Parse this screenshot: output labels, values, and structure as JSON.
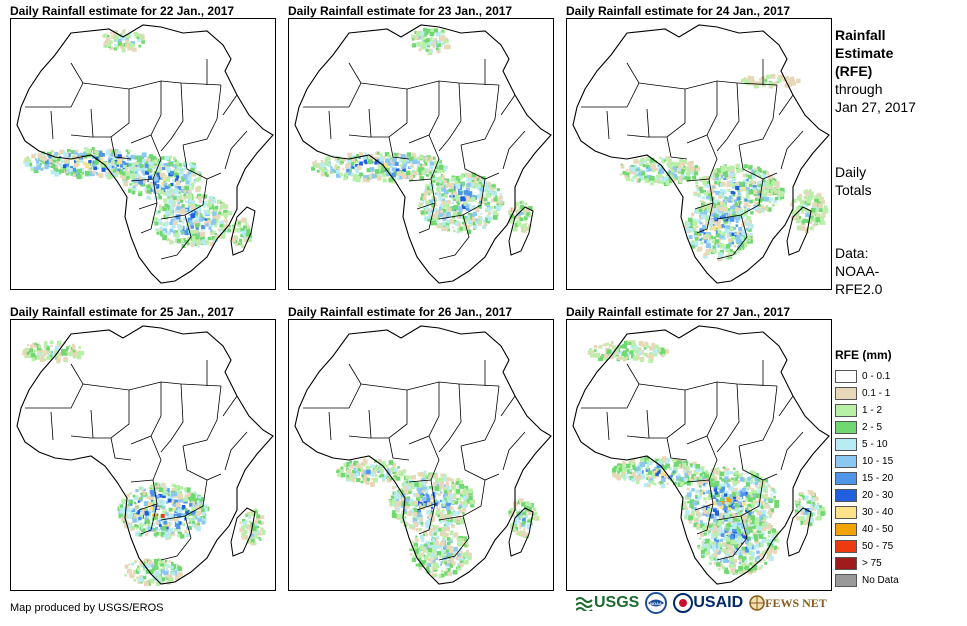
{
  "panels": [
    {
      "title": "Daily Rainfall estimate for 22 Jan., 2017",
      "seed": 22
    },
    {
      "title": "Daily Rainfall estimate for 23 Jan., 2017",
      "seed": 23
    },
    {
      "title": "Daily Rainfall estimate for 24 Jan., 2017",
      "seed": 24
    },
    {
      "title": "Daily Rainfall estimate for 25 Jan., 2017",
      "seed": 25
    },
    {
      "title": "Daily Rainfall estimate for 26 Jan., 2017",
      "seed": 26
    },
    {
      "title": "Daily Rainfall estimate for 27 Jan., 2017",
      "seed": 27
    }
  ],
  "side_info": {
    "title_line1": "Rainfall",
    "title_line2": "Estimate",
    "title_line3": "(RFE)",
    "through": "through",
    "date": "Jan 27, 2017",
    "daily1": "Daily",
    "daily2": "Totals",
    "data_label": "Data:",
    "data_src1": "NOAA-",
    "data_src2": "RFE2.0"
  },
  "legend": {
    "title": "RFE (mm)",
    "items": [
      {
        "label": "0 - 0.1",
        "color": "#ffffff"
      },
      {
        "label": "0.1 - 1",
        "color": "#e8d7b8"
      },
      {
        "label": "1 - 2",
        "color": "#b8f0a8"
      },
      {
        "label": "2 - 5",
        "color": "#70d870"
      },
      {
        "label": "5 - 10",
        "color": "#b8ecf4"
      },
      {
        "label": "10 - 15",
        "color": "#8cc6f2"
      },
      {
        "label": "15 - 20",
        "color": "#4f95ea"
      },
      {
        "label": "20 - 30",
        "color": "#1f5fe0"
      },
      {
        "label": "30 - 40",
        "color": "#fce38a"
      },
      {
        "label": "40 - 50",
        "color": "#f2a300"
      },
      {
        "label": "50 - 75",
        "color": "#ee3a12"
      },
      {
        "label": "> 75",
        "color": "#a01c1c"
      },
      {
        "label": "No Data",
        "color": "#999999"
      }
    ]
  },
  "footer": {
    "credit": "Map produced by USGS/EROS",
    "logos": [
      "USGS",
      "NOAA",
      "USAID",
      "FEWS NET"
    ]
  },
  "colors": {
    "usgs_green": "#1c6b2e",
    "noaa_blue": "#1b4f9c",
    "usaid_blue": "#002a6c",
    "usaid_red": "#c8102e",
    "fews_brown": "#8a5a1a"
  }
}
